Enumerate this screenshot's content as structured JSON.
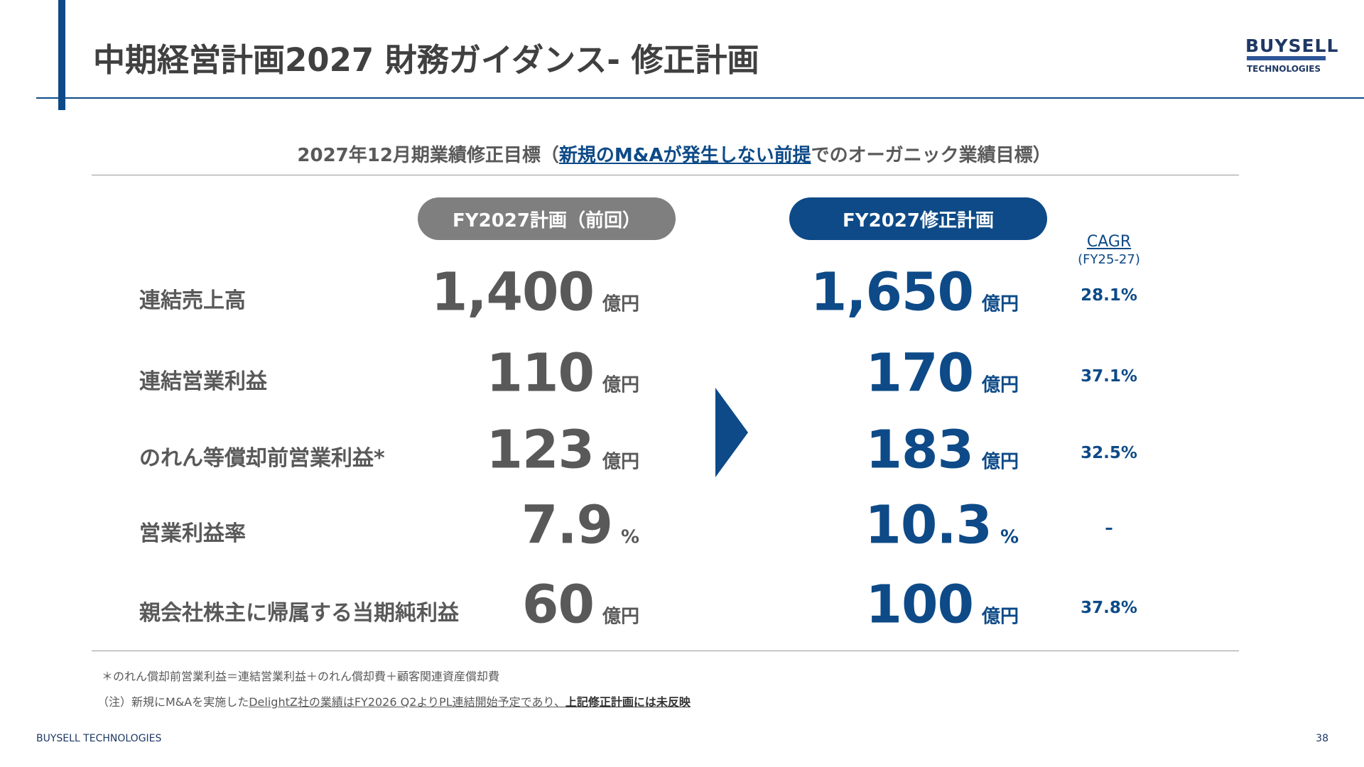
{
  "header": {
    "title": "中期経営計画2027 財務ガイダンス- 修正計画",
    "logo_main": "BUYSELL",
    "logo_sub": "TECHNOLOGIES"
  },
  "subtitle": {
    "before": "2027年12月期業績修正目標（",
    "highlight": "新規のM&Aが発生しない前提",
    "after": "でのオーガニック業績目標）"
  },
  "columns": {
    "previous": "FY2027計画（前回）",
    "revised": "FY2027修正計画",
    "cagr": "CAGR",
    "cagr_period": "(FY25-27)"
  },
  "rows": [
    {
      "label": "連結売上高",
      "previous": "1,400",
      "previous_unit": "億円",
      "revised": "1,650",
      "revised_unit": "億円",
      "cagr": "28.1%"
    },
    {
      "label": "連結営業利益",
      "previous": "110",
      "previous_unit": "億円",
      "revised": "170",
      "revised_unit": "億円",
      "cagr": "37.1%"
    },
    {
      "label": "のれん等償却前営業利益*",
      "previous": "123",
      "previous_unit": "億円",
      "revised": "183",
      "revised_unit": "億円",
      "cagr": "32.5%"
    },
    {
      "label": "営業利益率",
      "previous": "7.9",
      "previous_unit": "%",
      "revised": "10.3",
      "revised_unit": "%",
      "cagr": "–"
    },
    {
      "label": "親会社株主に帰属する当期純利益",
      "previous": "60",
      "previous_unit": "億円",
      "revised": "100",
      "revised_unit": "億円",
      "cagr": "37.8%"
    }
  ],
  "footnotes": {
    "note1": "＊のれん償却前営業利益＝連結営業利益＋のれん償却費＋顧客関連資産償却費",
    "note2_before": "（注）新規にM&Aを実施した",
    "note2_underlined": "DelightZ社の業績はFY2026 Q2よりPL連結開始予定であり、",
    "note2_bold": "上記修正計画には未反映"
  },
  "footer": {
    "company": "BUYSELL  TECHNOLOGIES",
    "page": "38"
  }
}
